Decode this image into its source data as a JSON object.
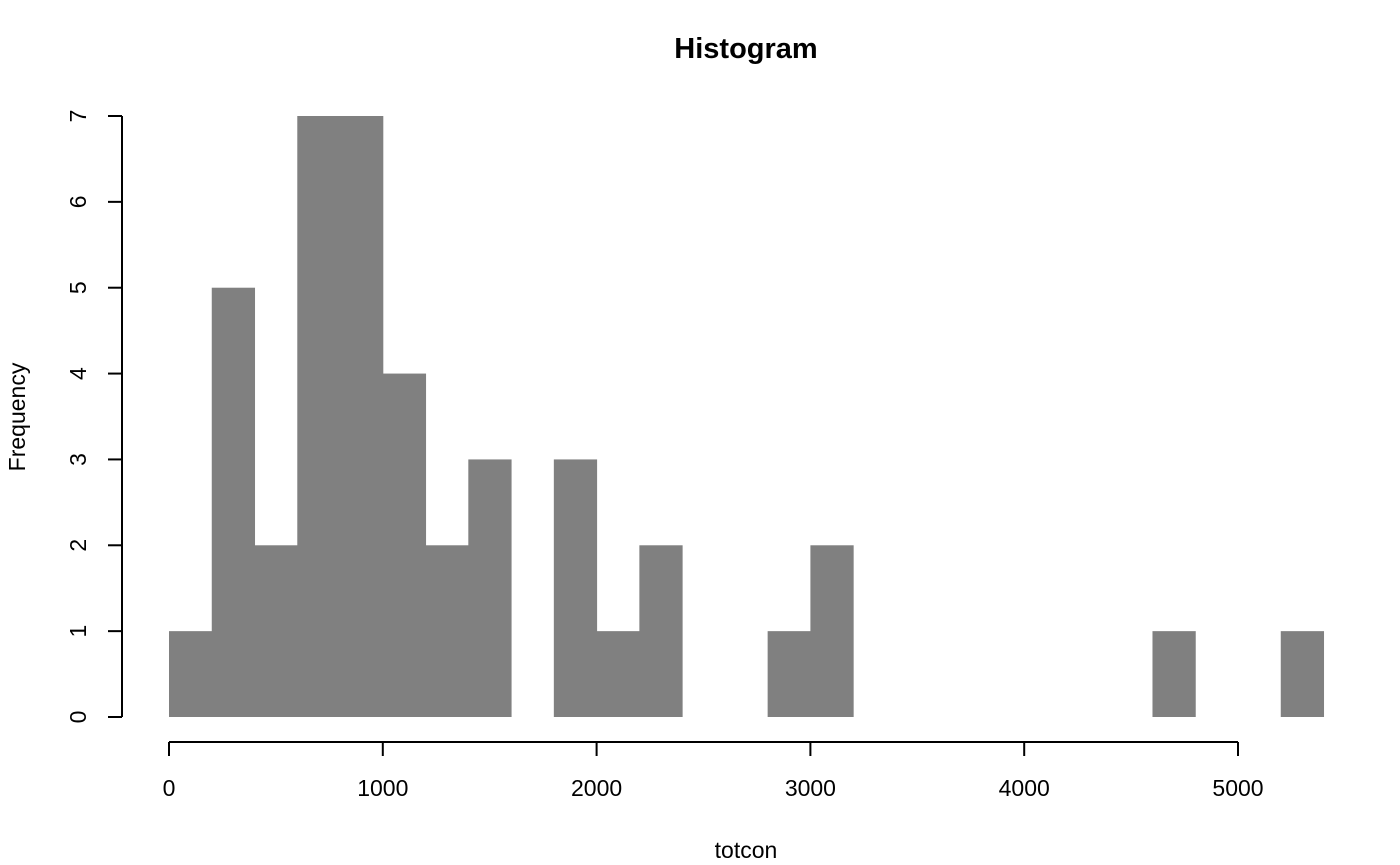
{
  "chart_data": {
    "type": "bar",
    "title": "Histogram",
    "xlabel": "totcon",
    "ylabel": "Frequency",
    "bin_width": 200,
    "bins": [
      {
        "start": 0,
        "end": 200,
        "count": 1
      },
      {
        "start": 200,
        "end": 400,
        "count": 5
      },
      {
        "start": 400,
        "end": 600,
        "count": 2
      },
      {
        "start": 600,
        "end": 800,
        "count": 7
      },
      {
        "start": 800,
        "end": 1000,
        "count": 7
      },
      {
        "start": 1000,
        "end": 1200,
        "count": 4
      },
      {
        "start": 1200,
        "end": 1400,
        "count": 2
      },
      {
        "start": 1400,
        "end": 1600,
        "count": 3
      },
      {
        "start": 1600,
        "end": 1800,
        "count": 0
      },
      {
        "start": 1800,
        "end": 2000,
        "count": 3
      },
      {
        "start": 2000,
        "end": 2200,
        "count": 1
      },
      {
        "start": 2200,
        "end": 2400,
        "count": 2
      },
      {
        "start": 2400,
        "end": 2600,
        "count": 0
      },
      {
        "start": 2600,
        "end": 2800,
        "count": 0
      },
      {
        "start": 2800,
        "end": 3000,
        "count": 1
      },
      {
        "start": 3000,
        "end": 3200,
        "count": 2
      },
      {
        "start": 3200,
        "end": 3400,
        "count": 0
      },
      {
        "start": 3400,
        "end": 3600,
        "count": 0
      },
      {
        "start": 3600,
        "end": 3800,
        "count": 0
      },
      {
        "start": 3800,
        "end": 4000,
        "count": 0
      },
      {
        "start": 4000,
        "end": 4200,
        "count": 0
      },
      {
        "start": 4200,
        "end": 4400,
        "count": 0
      },
      {
        "start": 4400,
        "end": 4600,
        "count": 0
      },
      {
        "start": 4600,
        "end": 4800,
        "count": 1
      },
      {
        "start": 4800,
        "end": 5000,
        "count": 0
      },
      {
        "start": 5000,
        "end": 5200,
        "count": 0
      },
      {
        "start": 5200,
        "end": 5400,
        "count": 1
      }
    ],
    "x_ticks": [
      0,
      1000,
      2000,
      3000,
      4000,
      5000
    ],
    "y_ticks": [
      0,
      1,
      2,
      3,
      4,
      5,
      6,
      7
    ],
    "xlim": [
      0,
      5400
    ],
    "ylim": [
      0,
      7
    ],
    "bar_color": "#808080",
    "grid": false,
    "legend": "none"
  }
}
